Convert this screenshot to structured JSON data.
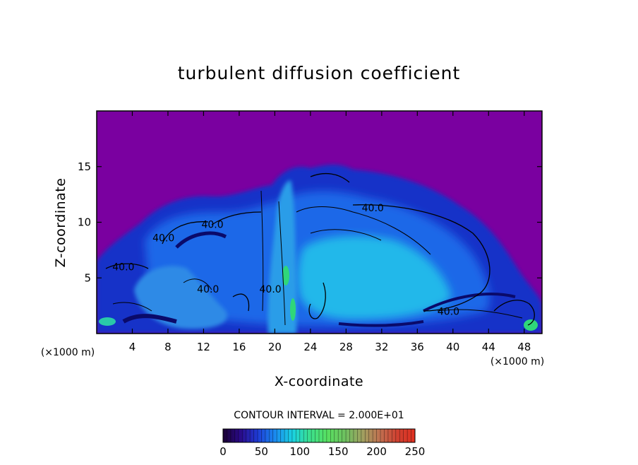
{
  "chart_data": {
    "type": "heatmap",
    "title": "turbulent diffusion coefficient",
    "xlabel": "X-coordinate",
    "ylabel": "Z-coordinate",
    "x_unit": "(×1000 m)",
    "x_unit_right": "(×1000 m)",
    "xlim": [
      0,
      50
    ],
    "ylim": [
      0,
      20
    ],
    "x_ticks": [
      "4",
      "8",
      "12",
      "16",
      "20",
      "24",
      "28",
      "32",
      "36",
      "40",
      "44",
      "48"
    ],
    "x_tick_values": [
      4,
      8,
      12,
      16,
      20,
      24,
      28,
      32,
      36,
      40,
      44,
      48
    ],
    "y_ticks": [
      "5",
      "10",
      "15"
    ],
    "y_tick_values": [
      5,
      10,
      15
    ],
    "contour_interval_text": "CONTOUR INTERVAL = 2.000E+01",
    "contour_interval": 20,
    "contour_labels": [
      {
        "text": "40.0",
        "x": 31,
        "z": 11.3
      },
      {
        "text": "40.0",
        "x": 13,
        "z": 9.8
      },
      {
        "text": "40.0",
        "x": 7.5,
        "z": 8.6
      },
      {
        "text": "40.0",
        "x": 3.0,
        "z": 6.0
      },
      {
        "text": "40.0",
        "x": 12.5,
        "z": 4.0
      },
      {
        "text": "40.0",
        "x": 19.5,
        "z": 4.0
      },
      {
        "text": "40.0",
        "x": 39.5,
        "z": 2.0
      }
    ],
    "colorbar": {
      "min": 0,
      "max": 250,
      "tick_labels": [
        "0",
        "50",
        "100",
        "150",
        "200",
        "250"
      ],
      "tick_values": [
        0,
        50,
        100,
        150,
        200,
        250
      ],
      "colors": [
        "#1a0033",
        "#2a0a8a",
        "#1e3cd6",
        "#1a8cf0",
        "#1ad2e0",
        "#3ce08c",
        "#58e060",
        "#6ec060",
        "#a0a060",
        "#c07050",
        "#d04030",
        "#e03020"
      ]
    },
    "background_color": "#7a00a0"
  }
}
